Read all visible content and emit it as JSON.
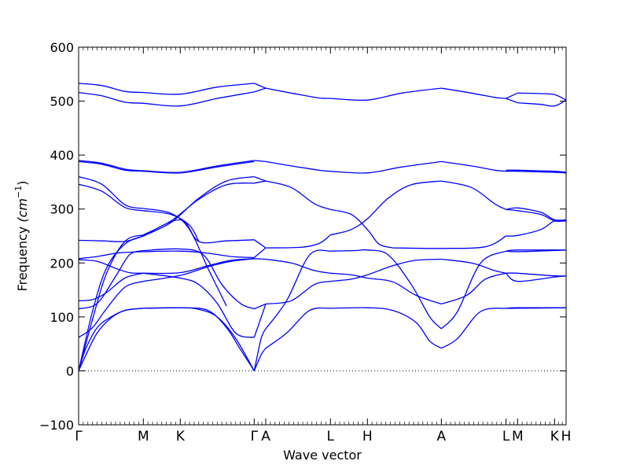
{
  "chart_data": {
    "type": "line",
    "title": "",
    "xlabel": "Wave vector",
    "ylabel": "Frequency ",
    "ylabel_unit": "(cm",
    "ylabel_exp": "−1",
    "ylabel_close": ")",
    "ylim": [
      -100,
      600
    ],
    "yticks": [
      -100,
      0,
      100,
      200,
      300,
      400,
      500,
      600
    ],
    "xlim": [
      0,
      10.55
    ],
    "zero_line": {
      "y": 0,
      "style": "dotted"
    },
    "line_color": "#0000ff",
    "symmetry_points": [
      {
        "label": "Γ",
        "x": 0.0
      },
      {
        "label": "M",
        "x": 1.4
      },
      {
        "label": "K",
        "x": 2.2
      },
      {
        "label": "Γ",
        "x": 3.8
      },
      {
        "label": "A",
        "x": 4.05
      },
      {
        "label": "L",
        "x": 5.45
      },
      {
        "label": "H",
        "x": 6.25
      },
      {
        "label": "A",
        "x": 7.85
      },
      {
        "label": "L",
        "x": 9.25
      },
      {
        "label": "M",
        "x": 9.5
      },
      {
        "label": "K",
        "x": 10.3
      },
      {
        "label": "H",
        "x": 10.55
      }
    ],
    "series": [
      {
        "x": [
          0,
          0.15,
          0.4,
          0.7,
          1.0,
          1.4
        ],
        "y": [
          0,
          40,
          80,
          100,
          112,
          116
        ]
      },
      {
        "x": [
          1.4,
          2.2,
          2.6,
          3.0,
          3.4,
          3.8
        ],
        "y": [
          116,
          117,
          114,
          100,
          60,
          0
        ]
      },
      {
        "x": [
          0,
          0.15,
          0.4,
          0.7,
          1.0,
          1.4
        ],
        "y": [
          0,
          28,
          70,
          98,
          112,
          116
        ]
      },
      {
        "x": [
          1.4,
          2.2,
          2.8,
          3.2,
          3.5,
          3.8
        ],
        "y": [
          116,
          117,
          112,
          80,
          40,
          0
        ]
      },
      {
        "x": [
          0,
          0.3,
          0.6,
          1.0,
          1.4
        ],
        "y": [
          62,
          80,
          115,
          155,
          166
        ]
      },
      {
        "x": [
          1.4,
          2.2,
          2.8,
          3.3,
          3.8
        ],
        "y": [
          166,
          177,
          193,
          203,
          208
        ]
      },
      {
        "x": [
          0,
          0.3,
          0.6,
          1.0,
          1.4
        ],
        "y": [
          0,
          95,
          180,
          240,
          252
        ]
      },
      {
        "x": [
          1.4,
          2.0,
          2.6,
          3.2,
          3.8
        ],
        "y": [
          252,
          278,
          318,
          345,
          348
        ]
      },
      {
        "x": [
          0,
          0.3,
          0.6,
          1.0,
          1.4
        ],
        "y": [
          0,
          110,
          190,
          235,
          250
        ]
      },
      {
        "x": [
          1.4,
          2.0,
          2.6,
          3.2,
          3.8
        ],
        "y": [
          250,
          275,
          320,
          352,
          360
        ]
      },
      {
        "x": [
          0,
          0.3,
          0.6,
          1.0,
          1.4
        ],
        "y": [
          130,
          132,
          145,
          172,
          181
        ]
      },
      {
        "x": [
          1.4,
          2.2,
          2.8,
          3.3,
          3.8
        ],
        "y": [
          181,
          182,
          195,
          205,
          208
        ]
      },
      {
        "x": [
          0,
          0.4,
          0.8,
          1.1,
          1.4
        ],
        "y": [
          115,
          125,
          175,
          215,
          223
        ]
      },
      {
        "x": [
          1.4,
          2.2,
          2.7,
          3.1,
          3.5,
          3.8
        ],
        "y": [
          223,
          226,
          215,
          160,
          125,
          115
        ]
      },
      {
        "x": [
          0,
          0.4,
          0.8,
          1.1,
          1.4
        ],
        "y": [
          206,
          203,
          190,
          182,
          181
        ]
      },
      {
        "x": [
          1.4,
          2.2,
          2.6,
          3.0,
          3.4,
          3.8
        ],
        "y": [
          181,
          172,
          160,
          125,
          70,
          62
        ]
      },
      {
        "x": [
          0,
          0.4,
          0.8,
          1.1,
          1.4
        ],
        "y": [
          208,
          212,
          218,
          220,
          221
        ]
      },
      {
        "x": [
          1.4,
          2.2,
          2.8,
          3.3,
          3.8
        ],
        "y": [
          221,
          222,
          218,
          212,
          210
        ]
      },
      {
        "x": [
          0,
          0.5,
          1.0,
          1.4
        ],
        "y": [
          242,
          241,
          240,
          250
        ]
      },
      {
        "x": [
          1.4,
          2.2,
          2.6,
          3.2,
          3.8
        ],
        "y": [
          250,
          280,
          240,
          241,
          243
        ]
      },
      {
        "x": [
          0,
          0.5,
          1.0,
          1.4
        ],
        "y": [
          346,
          333,
          303,
          297
        ]
      },
      {
        "x": [
          1.4,
          2.0,
          2.4,
          2.6
        ],
        "y": [
          297,
          290,
          270,
          240
        ]
      },
      {
        "x": [
          0,
          0.5,
          1.0,
          1.4
        ],
        "y": [
          360,
          346,
          308,
          301
        ]
      },
      {
        "x": [
          1.4,
          2.0,
          2.4,
          2.8,
          3.2
        ],
        "y": [
          301,
          292,
          262,
          190,
          120
        ]
      },
      {
        "x": [
          0,
          0.5,
          1.0,
          1.4,
          2.2,
          3.0,
          3.8
        ],
        "y": [
          388,
          383,
          372,
          370,
          367,
          378,
          388
        ]
      },
      {
        "x": [
          0,
          0.5,
          1.0,
          1.4,
          2.2,
          3.0,
          3.8
        ],
        "y": [
          390,
          385,
          374,
          371,
          368,
          380,
          390
        ]
      },
      {
        "x": [
          0,
          0.5,
          1.0,
          1.4,
          2.2,
          3.0,
          3.8
        ],
        "y": [
          516,
          510,
          498,
          496,
          491,
          505,
          517
        ]
      },
      {
        "x": [
          0,
          0.5,
          1.0,
          1.4,
          2.2,
          3.0,
          3.8
        ],
        "y": [
          533,
          529,
          518,
          516,
          513,
          526,
          533
        ]
      },
      {
        "x": [
          3.8,
          4.05
        ],
        "y": [
          517,
          524
        ]
      },
      {
        "x": [
          3.8,
          4.05
        ],
        "y": [
          533,
          524
        ]
      },
      {
        "x": [
          3.8,
          4.05
        ],
        "y": [
          390,
          388
        ]
      },
      {
        "x": [
          3.8,
          4.05
        ],
        "y": [
          360,
          352
        ]
      },
      {
        "x": [
          3.8,
          4.05
        ],
        "y": [
          348,
          352
        ]
      },
      {
        "x": [
          3.8,
          4.05
        ],
        "y": [
          243,
          228
        ]
      },
      {
        "x": [
          3.8,
          4.05
        ],
        "y": [
          210,
          228
        ]
      },
      {
        "x": [
          3.8,
          4.05
        ],
        "y": [
          208,
          207
        ]
      },
      {
        "x": [
          3.8,
          4.05
        ],
        "y": [
          115,
          124
        ]
      },
      {
        "x": [
          3.8,
          4.05
        ],
        "y": [
          62,
          124
        ]
      },
      {
        "x": [
          3.8,
          3.95,
          4.05
        ],
        "y": [
          0,
          60,
          78
        ]
      },
      {
        "x": [
          3.8,
          3.95,
          4.05
        ],
        "y": [
          0,
          30,
          42
        ]
      },
      {
        "x": [
          4.05,
          4.6,
          5.2,
          5.45,
          6.25,
          7.0,
          7.85
        ],
        "y": [
          524,
          515,
          506,
          505,
          502,
          515,
          524
        ]
      },
      {
        "x": [
          4.05,
          4.6,
          5.2,
          5.45,
          6.25,
          7.0,
          7.85
        ],
        "y": [
          388,
          380,
          372,
          370,
          367,
          378,
          388
        ]
      },
      {
        "x": [
          4.05,
          4.6,
          5.1,
          5.45
        ],
        "y": [
          352,
          340,
          310,
          299
        ]
      },
      {
        "x": [
          5.45,
          5.9,
          6.25,
          6.5,
          6.8
        ],
        "y": [
          299,
          290,
          262,
          235,
          228
        ]
      },
      {
        "x": [
          6.8,
          7.85,
          8.8,
          9.25
        ],
        "y": [
          228,
          227,
          230,
          250
        ]
      },
      {
        "x": [
          4.05,
          4.8,
          5.2,
          5.45
        ],
        "y": [
          228,
          229,
          236,
          252
        ]
      },
      {
        "x": [
          5.45,
          5.9,
          6.25,
          6.7,
          7.2,
          7.85
        ],
        "y": [
          252,
          262,
          282,
          320,
          345,
          352
        ]
      },
      {
        "x": [
          7.85,
          8.5,
          9.0,
          9.25
        ],
        "y": [
          352,
          340,
          310,
          299
        ]
      },
      {
        "x": [
          4.05,
          4.6,
          5.1,
          5.45
        ],
        "y": [
          207,
          200,
          186,
          181
        ]
      },
      {
        "x": [
          5.45,
          5.9,
          6.25,
          6.8,
          7.3,
          7.85
        ],
        "y": [
          181,
          178,
          172,
          165,
          140,
          124
        ]
      },
      {
        "x": [
          7.85,
          8.4,
          8.8,
          9.25
        ],
        "y": [
          124,
          140,
          170,
          181
        ]
      },
      {
        "x": [
          4.05,
          4.6,
          5.1,
          5.45
        ],
        "y": [
          124,
          130,
          160,
          166
        ]
      },
      {
        "x": [
          5.45,
          5.9,
          6.25,
          6.8,
          7.3,
          7.85
        ],
        "y": [
          166,
          170,
          178,
          195,
          205,
          207
        ]
      },
      {
        "x": [
          7.85,
          8.5,
          9.0,
          9.25
        ],
        "y": [
          207,
          200,
          186,
          181
        ]
      },
      {
        "x": [
          4.05,
          4.5,
          5.0,
          5.45
        ],
        "y": [
          78,
          130,
          215,
          222
        ]
      },
      {
        "x": [
          5.45,
          6.0,
          6.25,
          6.7,
          7.2,
          7.6,
          7.85
        ],
        "y": [
          222,
          223,
          224,
          215,
          160,
          100,
          78
        ]
      },
      {
        "x": [
          7.85,
          8.2,
          8.7,
          9.25
        ],
        "y": [
          78,
          110,
          200,
          222
        ]
      },
      {
        "x": [
          4.05,
          4.5,
          5.0,
          5.45
        ],
        "y": [
          42,
          70,
          112,
          116
        ]
      },
      {
        "x": [
          5.45,
          6.25,
          6.8,
          7.3,
          7.6,
          7.85
        ],
        "y": [
          116,
          117,
          112,
          90,
          55,
          42
        ]
      },
      {
        "x": [
          7.85,
          8.2,
          8.7,
          9.25
        ],
        "y": [
          42,
          60,
          110,
          116
        ]
      },
      {
        "x": [
          7.85,
          8.5,
          9.0,
          9.25
        ],
        "y": [
          524,
          515,
          507,
          505
        ]
      },
      {
        "x": [
          7.85,
          8.5,
          9.0,
          9.25
        ],
        "y": [
          388,
          380,
          372,
          370
        ]
      },
      {
        "x": [
          9.25,
          9.5
        ],
        "y": [
          505,
          515
        ]
      },
      {
        "x": [
          9.25,
          9.5
        ],
        "y": [
          505,
          497
        ]
      },
      {
        "x": [
          9.5,
          10.0,
          10.3,
          10.55
        ],
        "y": [
          515,
          514,
          512,
          502
        ]
      },
      {
        "x": [
          9.5,
          10.0,
          10.3,
          10.55
        ],
        "y": [
          497,
          494,
          491,
          502
        ]
      },
      {
        "x": [
          9.25,
          9.5,
          10.3,
          10.55
        ],
        "y": [
          370,
          370,
          368,
          367
        ]
      },
      {
        "x": [
          9.25,
          9.5,
          10.3,
          10.55
        ],
        "y": [
          372,
          372,
          370,
          368
        ]
      },
      {
        "x": [
          9.25,
          9.5,
          10.0,
          10.3,
          10.55
        ],
        "y": [
          299,
          302,
          294,
          280,
          280
        ]
      },
      {
        "x": [
          9.25,
          9.5,
          10.0,
          10.3,
          10.55
        ],
        "y": [
          299,
          297,
          290,
          278,
          278
        ]
      },
      {
        "x": [
          9.25,
          9.5,
          10.0,
          10.3,
          10.55
        ],
        "y": [
          250,
          251,
          262,
          278,
          278
        ]
      },
      {
        "x": [
          9.25,
          9.5,
          10.55
        ],
        "y": [
          222,
          224,
          224
        ]
      },
      {
        "x": [
          9.25,
          9.5,
          10.55
        ],
        "y": [
          222,
          221,
          224
        ]
      },
      {
        "x": [
          9.25,
          9.5,
          10.3,
          10.55
        ],
        "y": [
          181,
          181,
          176,
          176
        ]
      },
      {
        "x": [
          9.25,
          9.5,
          10.3,
          10.55
        ],
        "y": [
          181,
          166,
          174,
          176
        ]
      },
      {
        "x": [
          9.25,
          9.5,
          10.55
        ],
        "y": [
          116,
          116,
          117
        ]
      },
      {
        "x": [
          9.25,
          9.5,
          10.55
        ],
        "y": [
          116,
          117,
          117
        ]
      }
    ]
  }
}
